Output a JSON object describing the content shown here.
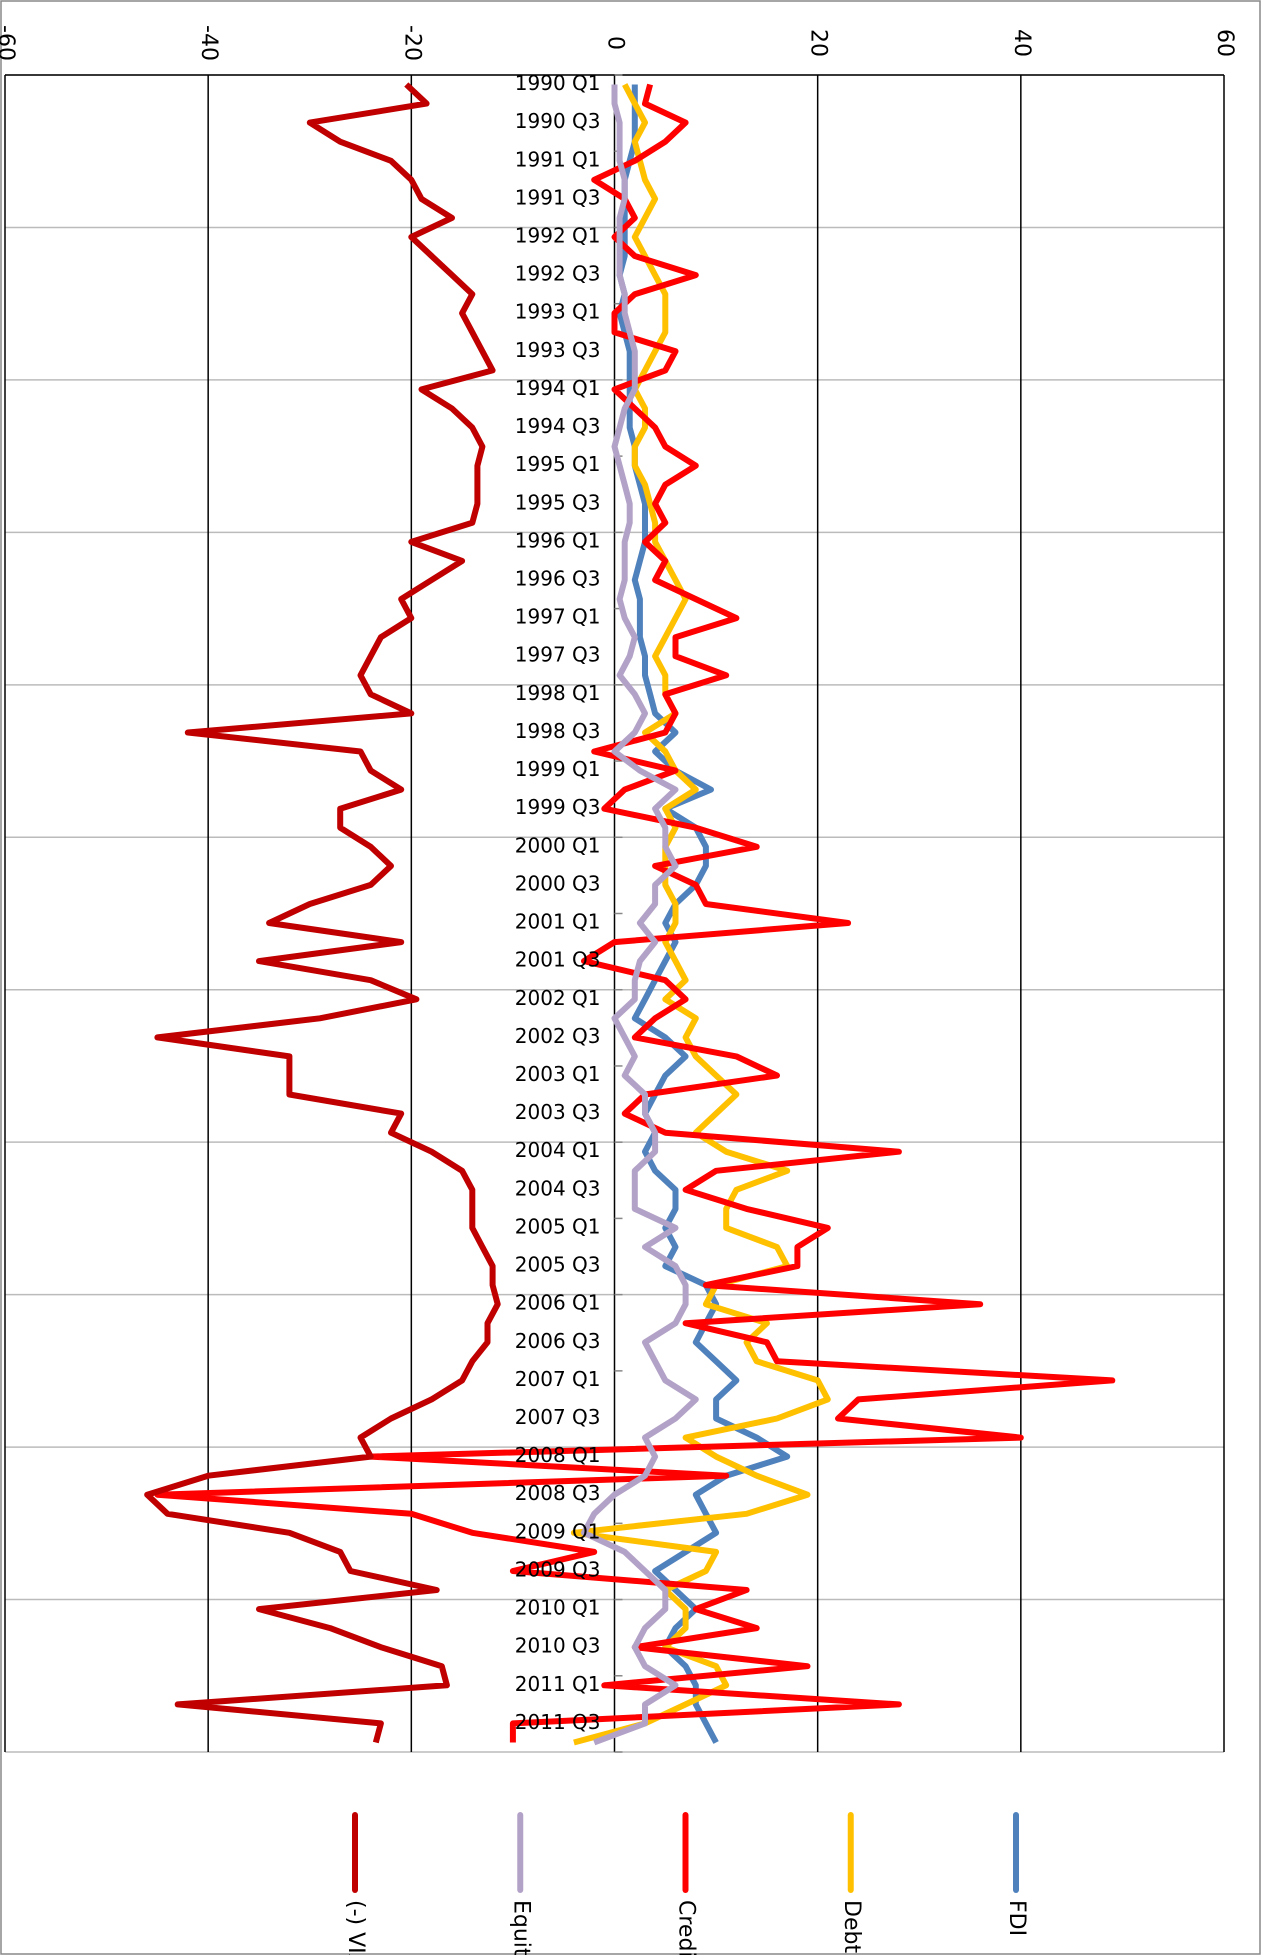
{
  "chart_data": {
    "type": "line",
    "categories": [
      "1990 Q1",
      null,
      "1990 Q3",
      null,
      "1991 Q1",
      null,
      "1991 Q3",
      null,
      "1992 Q1",
      null,
      "1992 Q3",
      null,
      "1993 Q1",
      null,
      "1993 Q3",
      null,
      "1994 Q1",
      null,
      "1994 Q3",
      null,
      "1995 Q1",
      null,
      "1995 Q3",
      null,
      "1996 Q1",
      null,
      "1996 Q3",
      null,
      "1997 Q1",
      null,
      "1997 Q3",
      null,
      "1998 Q1",
      null,
      "1998 Q3",
      null,
      "1999 Q1",
      null,
      "1999 Q3",
      null,
      "2000 Q1",
      null,
      "2000 Q3",
      null,
      "2001 Q1",
      null,
      "2001 Q3",
      null,
      "2002 Q1",
      null,
      "2002 Q3",
      null,
      "2003 Q1",
      null,
      "2003 Q3",
      null,
      "2004 Q1",
      null,
      "2004 Q3",
      null,
      "2005 Q1",
      null,
      "2005 Q3",
      null,
      "2006 Q1",
      null,
      "2006 Q3",
      null,
      "2007 Q1",
      null,
      "2007 Q3",
      null,
      "2008 Q1",
      null,
      "2008 Q3",
      null,
      "2009 Q1",
      null,
      "2009 Q3",
      null,
      "2010 Q1",
      null,
      "2010 Q3",
      null,
      "2011 Q1",
      null,
      "2011 Q3",
      null
    ],
    "series": [
      {
        "name": "FDI",
        "color": "#4f81bd",
        "values": [
          2,
          2,
          2,
          2,
          1.5,
          1,
          1,
          1,
          1,
          1,
          0.5,
          1,
          0.5,
          1,
          1.5,
          1.5,
          1.5,
          1.5,
          1.5,
          2,
          2,
          2.5,
          3,
          3,
          3,
          2.5,
          2,
          2.5,
          2.5,
          2.5,
          3,
          3,
          3.5,
          4,
          6,
          4,
          6,
          9.5,
          5,
          8,
          9,
          9,
          8,
          6,
          5,
          6,
          5,
          4,
          3,
          2,
          5,
          7,
          5,
          4,
          3,
          4,
          3,
          4,
          6,
          6,
          5,
          6,
          5,
          9,
          10,
          9,
          8,
          10,
          12,
          10,
          10,
          14,
          17,
          11,
          8,
          9,
          10,
          7,
          4,
          6,
          8,
          6,
          5,
          7,
          8,
          8,
          9,
          10
        ]
      },
      {
        "name": "Debt",
        "color": "#ffc000",
        "values": [
          1,
          2,
          3,
          2,
          2.5,
          3,
          4,
          3,
          2,
          3,
          4,
          5,
          5,
          5,
          4,
          3,
          2,
          3,
          3,
          2,
          2,
          3,
          3.5,
          4,
          4,
          5,
          6,
          7,
          6,
          5,
          4,
          5,
          5,
          6,
          3,
          5,
          6,
          8,
          5,
          6,
          5,
          5,
          5,
          6,
          6,
          5,
          6,
          7,
          5,
          8,
          7,
          8,
          10,
          12,
          10,
          8,
          11,
          17,
          12,
          11,
          11,
          16,
          17,
          10,
          9,
          15,
          13,
          14,
          20,
          21,
          16,
          7,
          10,
          14,
          19,
          13,
          -4,
          10,
          9,
          5,
          7,
          7,
          5,
          10,
          11,
          7,
          3,
          -4
        ]
      },
      {
        "name": "Credit",
        "color": "#ff0000",
        "values": [
          3.5,
          3,
          7,
          5,
          2,
          -2,
          1,
          2,
          0,
          2,
          8,
          2,
          0,
          0,
          6,
          5,
          0,
          2,
          4,
          5,
          8,
          5,
          4,
          5,
          3,
          5,
          4,
          8,
          12,
          6,
          6,
          11,
          5,
          6,
          5,
          -2,
          6,
          1,
          -1,
          8,
          14,
          4,
          8,
          9,
          23,
          0,
          -3,
          5,
          7,
          4,
          2,
          12,
          16,
          3,
          1,
          5,
          28,
          10,
          7,
          13,
          21,
          18,
          18,
          9,
          36,
          7,
          15,
          16,
          49,
          24,
          22,
          40,
          -24,
          11,
          -45,
          -20,
          -14,
          -2,
          -10,
          13,
          8,
          14,
          2,
          19,
          -1,
          28,
          -10,
          -10
        ]
      },
      {
        "name": "Equity",
        "color": "#b3a2c7",
        "values": [
          0,
          0,
          0.5,
          0.5,
          0.5,
          1,
          1,
          0.5,
          0.5,
          0.5,
          0.5,
          1,
          1,
          1.5,
          2,
          2,
          2,
          1,
          0.5,
          0,
          0.5,
          1,
          1.5,
          1.5,
          1,
          1,
          1,
          0.5,
          1,
          2,
          1.5,
          0.5,
          2,
          3,
          2,
          0,
          2.5,
          6,
          4,
          5,
          5,
          6,
          4,
          4,
          2.5,
          4,
          2.5,
          2,
          2,
          0,
          1,
          2,
          1,
          3,
          3,
          4,
          4,
          2,
          2,
          2,
          6,
          3,
          6,
          7,
          7,
          6,
          3,
          4,
          5,
          8,
          6,
          3,
          4,
          3,
          0,
          -2,
          -3,
          1,
          3,
          5,
          5,
          3,
          2,
          3,
          6,
          3,
          3,
          -2
        ]
      },
      {
        "name": "(-) VIX",
        "color": "#c00000",
        "values": [
          -20.5,
          -18.5,
          -30,
          -27,
          -22,
          -20,
          -19,
          -16,
          -20,
          -18,
          -16,
          -14,
          -15,
          -14,
          -13,
          -12,
          -19,
          -16,
          -14,
          -13,
          -13.5,
          -13.5,
          -13.5,
          -14,
          -20,
          -15,
          -18,
          -21,
          -20,
          -23,
          -24,
          -25,
          -24,
          -20,
          -42,
          -25,
          -24,
          -21,
          -27,
          -27,
          -24,
          -22,
          -24,
          -30,
          -34,
          -21,
          -35,
          -24,
          -19.5,
          -29,
          -45,
          -32,
          -32,
          -32,
          -21,
          -22,
          -18,
          -15,
          -14,
          -14,
          -14,
          -13,
          -12,
          -12,
          -11.5,
          -12.5,
          -12.5,
          -14,
          -15,
          -18,
          -22,
          -25,
          -24,
          -40,
          -46,
          -44,
          -32,
          -27,
          -26,
          -17.5,
          -35,
          -28,
          -23,
          -17,
          -16.5,
          -43,
          -23,
          -23.5
        ]
      }
    ],
    "ylim": [
      -60,
      60
    ],
    "yticks": [
      -60,
      -40,
      -20,
      0,
      20,
      40,
      60
    ],
    "grid": true,
    "legend": "bottom"
  }
}
